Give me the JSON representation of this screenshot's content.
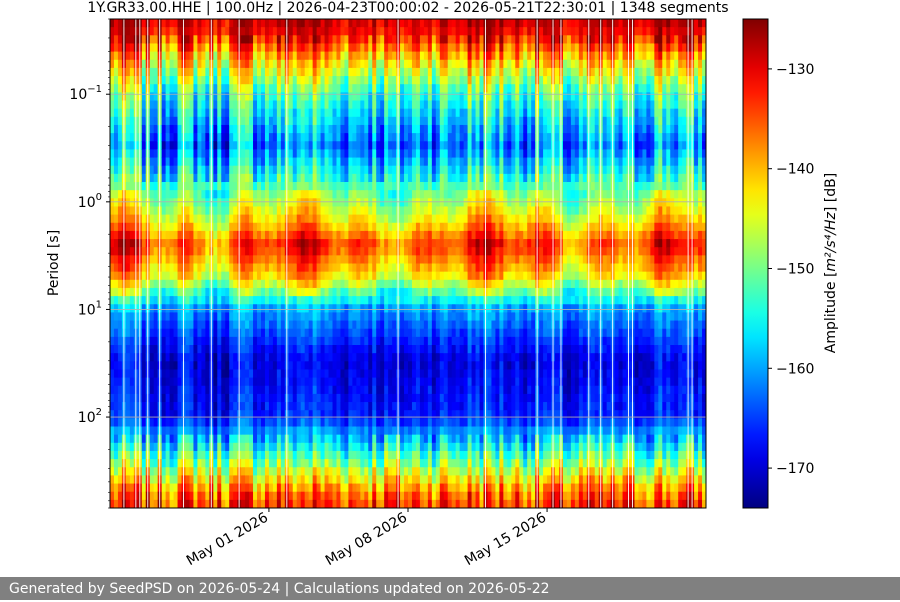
{
  "chart_data": {
    "type": "heatmap",
    "title": "1Y.GR33.00.HHE | 100.0Hz | 2026-04-23T00:00:02 - 2026-05-21T22:30:01 | 1348 segments",
    "xlabel": "",
    "ylabel": "Period [s]",
    "y_scale": "log",
    "y_inverted": true,
    "ylim": [
      0.02,
      700
    ],
    "x_range": [
      "2026-04-23",
      "2026-05-23"
    ],
    "x_ticks": [
      {
        "date": "2026-05-01",
        "label": "May 01 2026"
      },
      {
        "date": "2026-05-08",
        "label": "May 08 2026"
      },
      {
        "date": "2026-05-15",
        "label": "May 15 2026"
      }
    ],
    "y_ticks": [
      {
        "value": 0.1,
        "base": "10",
        "exp": "−1"
      },
      {
        "value": 1,
        "base": "10",
        "exp": "0"
      },
      {
        "value": 10,
        "base": "10",
        "exp": "1"
      },
      {
        "value": 100,
        "base": "10",
        "exp": "2"
      }
    ],
    "grid": true,
    "colormap": "jet",
    "colorbar": {
      "label_prefix": "Amplitude [",
      "label_unit": "m²/s⁴/Hz",
      "label_suffix": "] [dB]",
      "range": [
        -174,
        -125
      ],
      "ticks": [
        -130,
        -140,
        -150,
        -160,
        -170
      ],
      "tick_labels": [
        "−130",
        "−140",
        "−150",
        "−160",
        "−170"
      ]
    },
    "band_profile": [
      {
        "period": 0.02,
        "db": -128
      },
      {
        "period": 0.03,
        "db": -131
      },
      {
        "period": 0.05,
        "db": -141
      },
      {
        "period": 0.1,
        "db": -152
      },
      {
        "period": 0.3,
        "db": -162
      },
      {
        "period": 1.5,
        "db": -142
      },
      {
        "period": 2.5,
        "db": -133
      },
      {
        "period": 5,
        "db": -142
      },
      {
        "period": 10,
        "db": -160
      },
      {
        "period": 30,
        "db": -169
      },
      {
        "period": 100,
        "db": -166
      },
      {
        "period": 250,
        "db": -150
      },
      {
        "period": 500,
        "db": -136
      },
      {
        "period": 700,
        "db": -132
      }
    ]
  },
  "footer": "Generated by SeedPSD on 2026-05-24 | Calculations updated on 2026-05-22"
}
